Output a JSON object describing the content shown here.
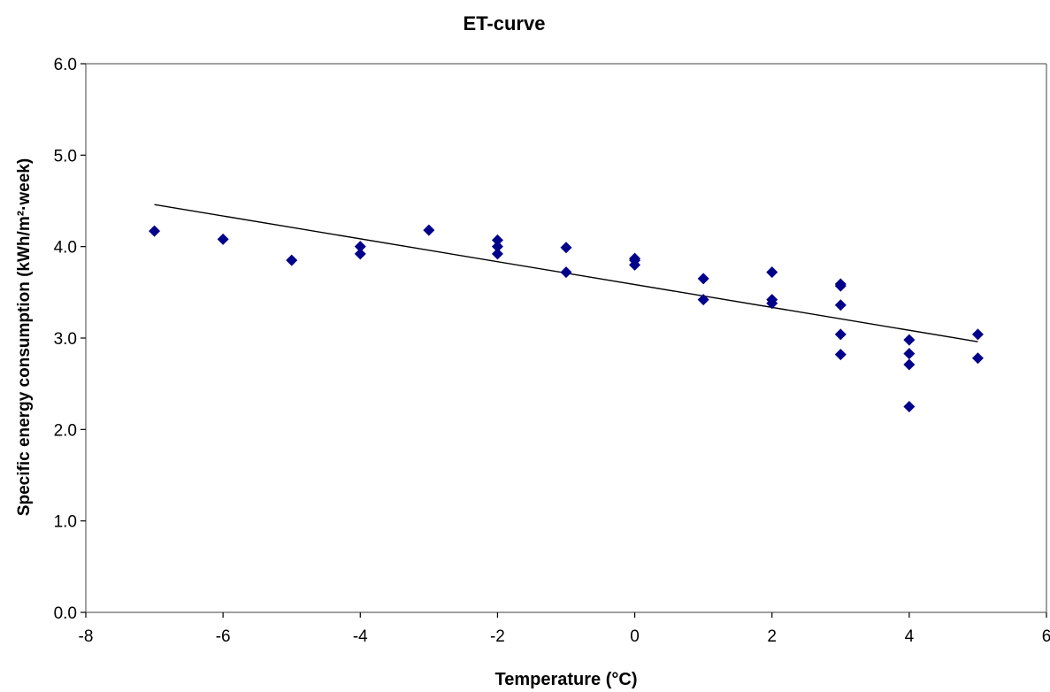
{
  "chart_data": {
    "type": "scatter",
    "title": "ET-curve",
    "xlabel": "Temperature (°C)",
    "ylabel": "Specific energy consumption (kWh/m²·week)",
    "xlim": [
      -8,
      6
    ],
    "ylim": [
      0,
      6
    ],
    "x_ticks": [
      -8,
      -6,
      -4,
      -2,
      0,
      2,
      4,
      6
    ],
    "y_ticks": [
      0,
      1,
      2,
      3,
      4,
      5,
      6
    ],
    "x_tick_labels": [
      "-8",
      "-6",
      "-4",
      "-2",
      "0",
      "2",
      "4",
      "6"
    ],
    "y_tick_labels": [
      "0.0",
      "1.0",
      "2.0",
      "3.0",
      "4.0",
      "5.0",
      "6.0"
    ],
    "grid": false,
    "legend": "none",
    "marker_color": "#00008B",
    "marker": "diamond",
    "points": [
      {
        "x": -7,
        "y": 4.17
      },
      {
        "x": -6,
        "y": 4.08
      },
      {
        "x": -5,
        "y": 3.85
      },
      {
        "x": -4,
        "y": 4.0
      },
      {
        "x": -4,
        "y": 3.92
      },
      {
        "x": -3,
        "y": 4.18
      },
      {
        "x": -2,
        "y": 4.07
      },
      {
        "x": -2,
        "y": 4.0
      },
      {
        "x": -2,
        "y": 3.92
      },
      {
        "x": -1,
        "y": 3.99
      },
      {
        "x": -1,
        "y": 3.72
      },
      {
        "x": 0,
        "y": 3.87
      },
      {
        "x": 0,
        "y": 3.85
      },
      {
        "x": 0,
        "y": 3.8
      },
      {
        "x": 1,
        "y": 3.65
      },
      {
        "x": 1,
        "y": 3.42
      },
      {
        "x": 2,
        "y": 3.72
      },
      {
        "x": 2,
        "y": 3.42
      },
      {
        "x": 2,
        "y": 3.38
      },
      {
        "x": 3,
        "y": 3.59
      },
      {
        "x": 3,
        "y": 3.57
      },
      {
        "x": 3,
        "y": 3.36
      },
      {
        "x": 3,
        "y": 3.04
      },
      {
        "x": 3,
        "y": 2.82
      },
      {
        "x": 4,
        "y": 2.98
      },
      {
        "x": 4,
        "y": 2.83
      },
      {
        "x": 4,
        "y": 2.71
      },
      {
        "x": 4,
        "y": 2.25
      },
      {
        "x": 5,
        "y": 3.04
      },
      {
        "x": 5,
        "y": 2.78
      }
    ],
    "trendline": {
      "type": "linear",
      "color": "#000000",
      "points": [
        {
          "x": -7,
          "y": 4.46
        },
        {
          "x": 5,
          "y": 2.96
        }
      ]
    }
  }
}
